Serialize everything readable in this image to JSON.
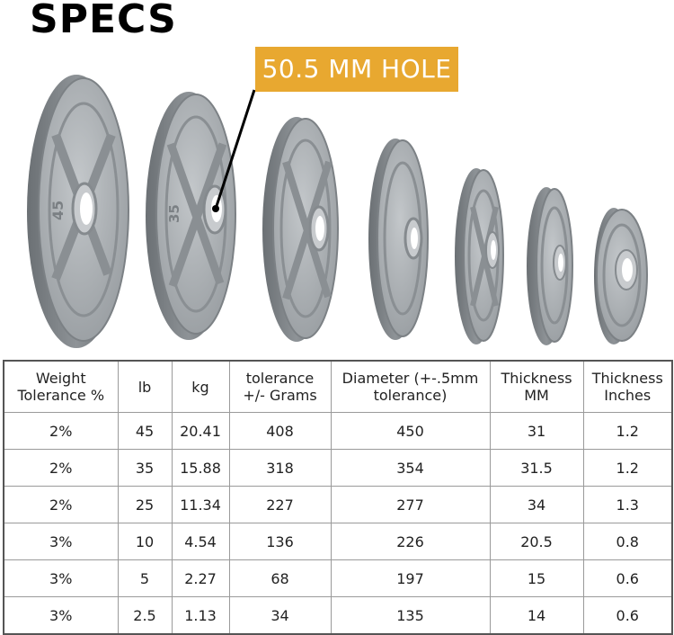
{
  "heading": "SPECS",
  "callout": "50.5 MM HOLE",
  "plate_labels": {
    "p45": "45",
    "p35": "35"
  },
  "table": {
    "headers": [
      [
        "Weight",
        "Tolerance %"
      ],
      [
        "lb"
      ],
      [
        "kg"
      ],
      [
        "tolerance",
        "+/- Grams"
      ],
      [
        "Diameter (+-.5mm",
        "tolerance)"
      ],
      [
        "Thickness",
        "MM"
      ],
      [
        "Thickness",
        "Inches"
      ]
    ],
    "rows": [
      [
        "2%",
        "45",
        "20.41",
        "408",
        "450",
        "31",
        "1.2"
      ],
      [
        "2%",
        "35",
        "15.88",
        "318",
        "354",
        "31.5",
        "1.2"
      ],
      [
        "2%",
        "25",
        "11.34",
        "227",
        "277",
        "34",
        "1.3"
      ],
      [
        "3%",
        "10",
        "4.54",
        "136",
        "226",
        "20.5",
        "0.8"
      ],
      [
        "3%",
        "5",
        "2.27",
        "68",
        "197",
        "15",
        "0.6"
      ],
      [
        "3%",
        "2.5",
        "1.13",
        "34",
        "135",
        "14",
        "0.6"
      ]
    ]
  },
  "colors": {
    "callout_bg": "#e8a830",
    "plate_face": "#a7acb0",
    "plate_rim": "#6e7377"
  }
}
